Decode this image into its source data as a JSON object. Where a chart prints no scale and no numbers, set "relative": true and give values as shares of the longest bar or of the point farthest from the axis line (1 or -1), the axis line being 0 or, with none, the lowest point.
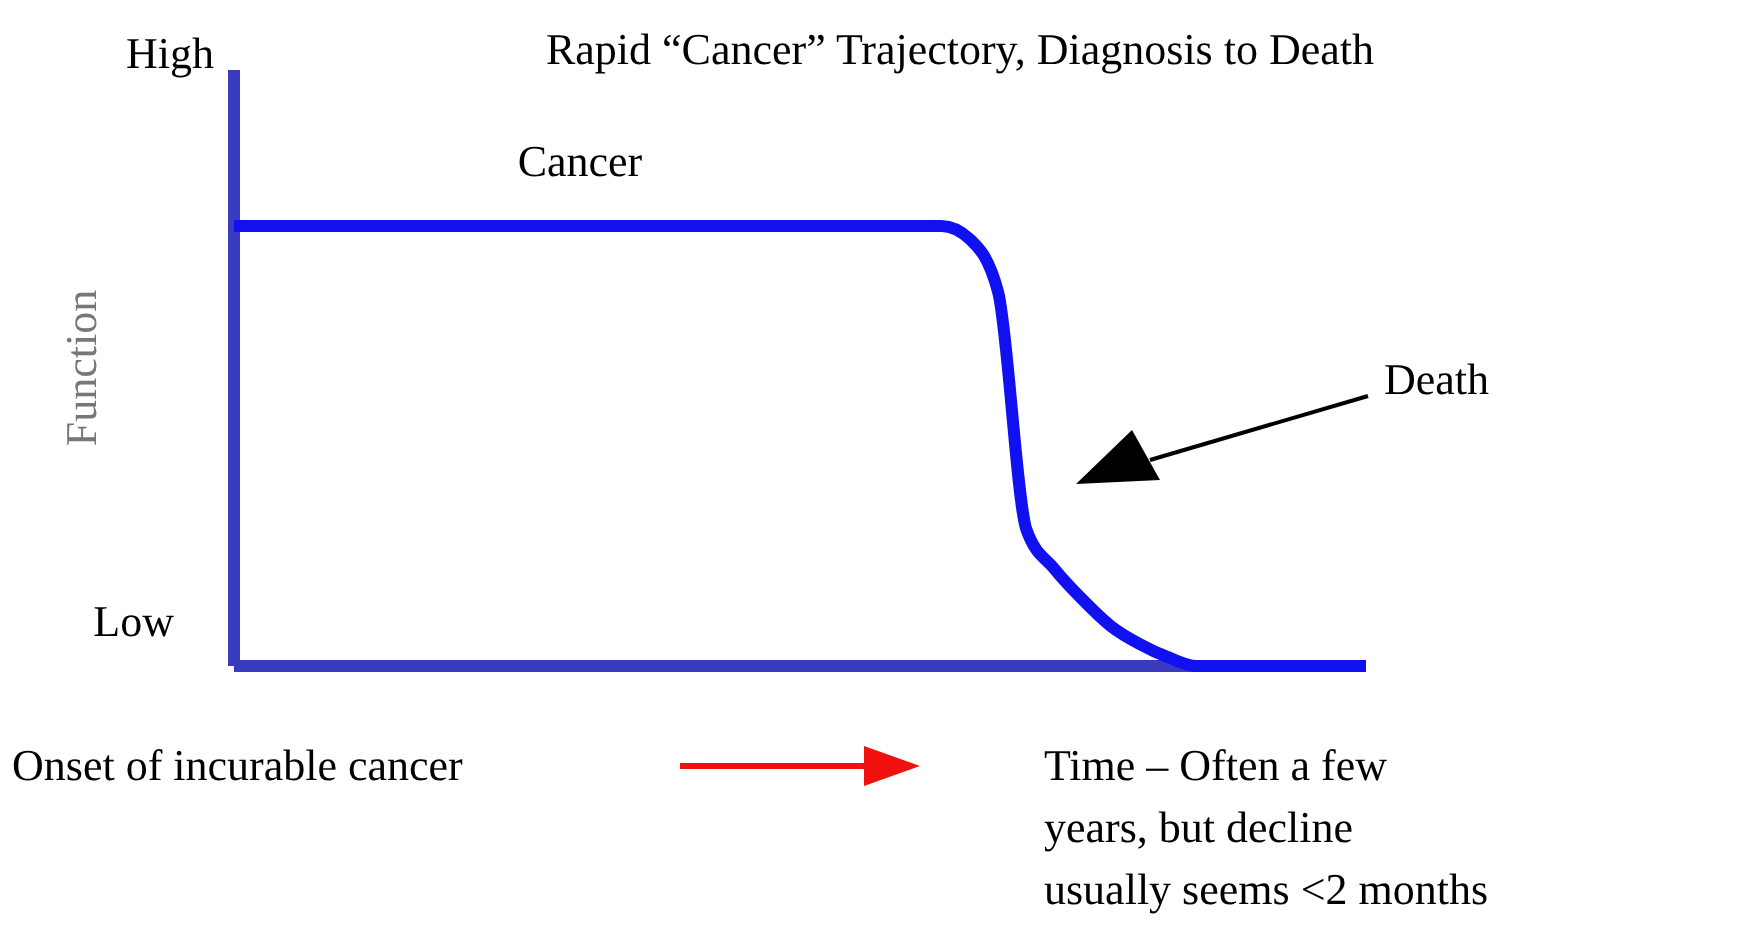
{
  "chart_data": {
    "type": "line",
    "title": "Rapid “Cancer” Trajectory, Diagnosis to Death",
    "ylabel": "Function",
    "relative": true,
    "categories": [
      null,
      null,
      null,
      null,
      null,
      null,
      null,
      null,
      null,
      null,
      null,
      null,
      null,
      null,
      null,
      null,
      null,
      null,
      null,
      null,
      null,
      null,
      null,
      null,
      null,
      null,
      null,
      null,
      null,
      null,
      null,
      null,
      null,
      null,
      null,
      null,
      null,
      null,
      null,
      null,
      null
    ],
    "series": [
      {
        "name": "Cancer",
        "color": "#1010f0",
        "values": [
          1,
          1,
          1,
          1,
          1,
          1,
          1,
          1,
          1,
          1,
          1,
          1,
          1,
          1,
          1,
          1,
          1,
          1,
          1,
          1,
          1,
          1,
          1,
          1,
          1,
          1,
          0.97,
          0.85,
          0.31,
          0.22,
          0.15,
          0.09,
          0.05,
          0.02,
          0,
          0,
          0,
          0,
          0,
          0,
          0
        ]
      }
    ],
    "annotations": [
      "High",
      "Low",
      "Death",
      "Time – Often a few years, but decline usually seems <2 months",
      "Onset of incurable cancer"
    ],
    "marker": "none",
    "line_style": "solid"
  }
}
